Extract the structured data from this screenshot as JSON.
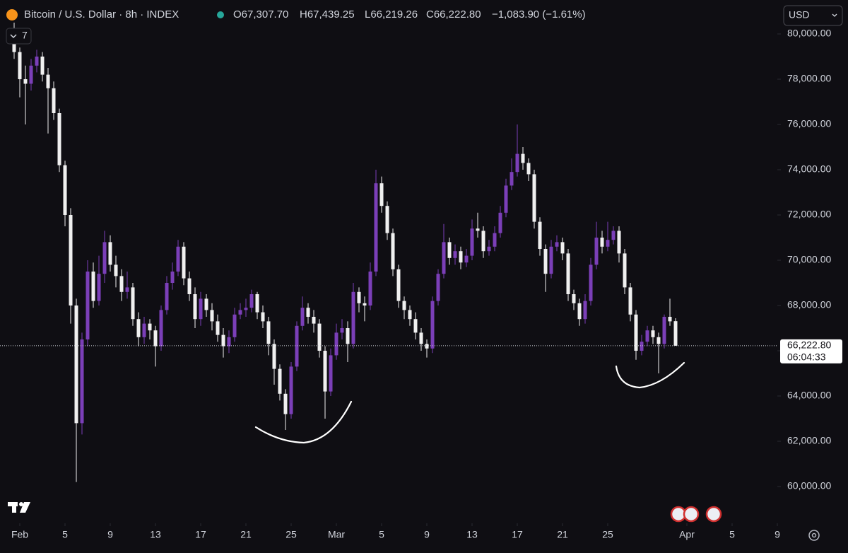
{
  "chart_data": {
    "type": "candlestick",
    "title": "Bitcoin / U.S. Dollar · 8h · INDEX",
    "ohlc_labels": [
      "O67,307.70",
      "H67,439.25",
      "L66,219.26",
      "C66,222.80"
    ],
    "change": "−1,083.90 (−1.61%)",
    "currency": "USD",
    "indicator_count": "7",
    "last_price_label": "66,222.80",
    "countdown": "06:04:33",
    "up_color": "#7b3fb8",
    "down_color": "#f0f0f0",
    "xlim": [
      -1.75,
      67
    ],
    "ylim": [
      58375,
      81500
    ],
    "xticks": [
      {
        "value": 0,
        "label": "Feb"
      },
      {
        "value": 4,
        "label": "5"
      },
      {
        "value": 8,
        "label": "9"
      },
      {
        "value": 12,
        "label": "13"
      },
      {
        "value": 16,
        "label": "17"
      },
      {
        "value": 20,
        "label": "21"
      },
      {
        "value": 24,
        "label": "25"
      },
      {
        "value": 28,
        "label": "Mar"
      },
      {
        "value": 32,
        "label": "5"
      },
      {
        "value": 36,
        "label": "9"
      },
      {
        "value": 40,
        "label": "13"
      },
      {
        "value": 44,
        "label": "17"
      },
      {
        "value": 48,
        "label": "21"
      },
      {
        "value": 52,
        "label": "25"
      },
      {
        "value": 59,
        "label": "Apr"
      },
      {
        "value": 63,
        "label": "5"
      },
      {
        "value": 67,
        "label": "9"
      }
    ],
    "yticks": [
      {
        "value": 60000,
        "label": "60,000.00"
      },
      {
        "value": 62000,
        "label": "62,000.00"
      },
      {
        "value": 64000,
        "label": "64,000.00"
      },
      {
        "value": 66000,
        "label": "66,000.00"
      },
      {
        "value": 68000,
        "label": "68,000.00"
      },
      {
        "value": 70000,
        "label": "70,000.00"
      },
      {
        "value": 72000,
        "label": "72,000.00"
      },
      {
        "value": 74000,
        "label": "74,000.00"
      },
      {
        "value": 76000,
        "label": "76,000.00"
      },
      {
        "value": 78000,
        "label": "78,000.00"
      },
      {
        "value": 80000,
        "label": "80,000.00"
      }
    ],
    "x": [
      -0.5,
      0,
      0.5,
      1,
      1.5,
      2,
      2.5,
      3,
      3.5,
      4,
      4.5,
      5,
      5.5,
      6,
      6.5,
      7,
      7.5,
      8,
      8.5,
      9,
      9.5,
      10,
      10.5,
      11,
      11.5,
      12,
      12.5,
      13,
      13.5,
      14,
      14.5,
      15,
      15.5,
      16,
      16.5,
      17,
      17.5,
      18,
      18.5,
      19,
      19.5,
      20,
      20.5,
      21,
      21.5,
      22,
      22.5,
      23,
      23.5,
      24,
      24.5,
      25,
      25.5,
      26,
      26.5,
      27,
      27.5,
      28,
      28.5,
      29,
      29.5,
      30,
      30.5,
      31,
      31.5,
      32,
      32.5,
      33,
      33.5,
      34,
      34.5,
      35,
      35.5,
      36,
      36.5,
      37,
      37.5,
      38,
      38.5,
      39,
      39.5,
      40,
      40.5,
      41,
      41.5,
      42,
      42.5,
      43,
      43.5,
      44,
      44.5,
      45,
      45.5,
      46,
      46.5,
      47,
      47.5,
      48,
      48.5,
      49,
      49.5,
      50,
      50.5,
      51,
      51.5,
      52,
      52.5,
      53,
      53.5,
      54,
      54.5,
      55,
      55.5,
      56,
      56.5,
      57,
      57.5,
      58
    ],
    "open": [
      79800,
      79200,
      78000,
      77800,
      78600,
      79000,
      78200,
      77600,
      76500,
      74200,
      72000,
      68000,
      62800,
      66500,
      69500,
      68200,
      69400,
      70800,
      69800,
      69300,
      68600,
      68800,
      67400,
      66600,
      67200,
      66900,
      66200,
      67800,
      69000,
      69500,
      70600,
      69200,
      68500,
      67400,
      68300,
      67800,
      67300,
      66700,
      66200,
      66600,
      67600,
      67800,
      67900,
      68500,
      67700,
      67300,
      66300,
      65200,
      64100,
      63200,
      65300,
      67100,
      67900,
      67500,
      67200,
      66000,
      64200,
      65800,
      66800,
      67000,
      66300,
      68600,
      68100,
      68000,
      69500,
      73400,
      72400,
      71200,
      69600,
      68200,
      67800,
      67400,
      66800,
      66300,
      66100,
      68200,
      69400,
      70800,
      70100,
      70400,
      69900,
      70200,
      71400,
      71300,
      70400,
      70600,
      71200,
      72100,
      73300,
      73900,
      74700,
      74300,
      73800,
      71700,
      70500,
      69400,
      70600,
      70800,
      70300,
      68500,
      68100,
      67400,
      68200,
      69800,
      71000,
      70600,
      70900,
      71300,
      70300,
      68800,
      67600,
      66000,
      66400,
      66900,
      66600,
      66300,
      67500,
      67307.7
    ],
    "high": [
      80500,
      79400,
      78600,
      78900,
      79300,
      79200,
      78500,
      77900,
      76700,
      74400,
      72300,
      68300,
      66800,
      70000,
      69900,
      70200,
      71300,
      71100,
      70200,
      69600,
      69500,
      69000,
      67700,
      67500,
      67400,
      67100,
      68000,
      69300,
      69900,
      70900,
      70800,
      69500,
      68800,
      68600,
      68500,
      68100,
      67600,
      67000,
      66900,
      67900,
      68100,
      68300,
      68700,
      68600,
      68000,
      67500,
      66500,
      65400,
      64300,
      65500,
      67300,
      68400,
      68100,
      67800,
      67400,
      66200,
      66100,
      67200,
      67400,
      67300,
      69000,
      68800,
      68400,
      69900,
      74000,
      73700,
      72600,
      71400,
      69800,
      68400,
      68000,
      67700,
      67000,
      66500,
      68400,
      69600,
      71600,
      71000,
      70700,
      70600,
      70500,
      71800,
      72100,
      71500,
      70900,
      71500,
      72400,
      73600,
      74500,
      76000,
      75000,
      74500,
      74000,
      71900,
      70700,
      70900,
      71100,
      71000,
      70500,
      68700,
      68300,
      68500,
      70100,
      71700,
      71300,
      71700,
      71500,
      71500,
      70500,
      69000,
      67800,
      66700,
      67100,
      67100,
      66800,
      67600,
      68300,
      67439.25
    ],
    "low": [
      78900,
      77200,
      76000,
      77500,
      78300,
      77900,
      75600,
      76200,
      73900,
      71500,
      67200,
      60200,
      62300,
      66200,
      67900,
      68000,
      69000,
      69500,
      68800,
      68200,
      68300,
      67100,
      66200,
      66300,
      66500,
      65300,
      66000,
      67600,
      68700,
      69300,
      68900,
      68200,
      67000,
      67100,
      67500,
      66900,
      66400,
      65700,
      65900,
      66400,
      67400,
      67500,
      67700,
      67400,
      67000,
      65800,
      64500,
      63800,
      62500,
      63000,
      65100,
      66900,
      67200,
      66800,
      65700,
      63000,
      64000,
      65600,
      66500,
      65500,
      66100,
      67700,
      67300,
      67800,
      69300,
      72100,
      70900,
      69300,
      67900,
      67400,
      67100,
      66500,
      66000,
      65700,
      65900,
      68000,
      69200,
      69800,
      69800,
      69600,
      69700,
      70000,
      71000,
      70100,
      70200,
      70400,
      71000,
      71900,
      73100,
      73700,
      74000,
      73500,
      71400,
      70200,
      68600,
      69200,
      70400,
      70000,
      68200,
      67800,
      67100,
      67200,
      68000,
      69600,
      70300,
      70400,
      70700,
      69900,
      68500,
      67300,
      65600,
      65800,
      66200,
      66300,
      65000,
      66100,
      67100,
      66219.26
    ],
    "close": [
      79200,
      78000,
      77800,
      78600,
      79000,
      78200,
      77600,
      76500,
      74200,
      72000,
      68000,
      62800,
      66500,
      69500,
      68200,
      69400,
      70800,
      69800,
      69300,
      68600,
      68800,
      67400,
      66600,
      67200,
      66900,
      66200,
      67800,
      69000,
      69500,
      70600,
      69200,
      68500,
      67400,
      68300,
      67800,
      67300,
      66700,
      66200,
      66600,
      67600,
      67800,
      67900,
      68500,
      67700,
      67300,
      66300,
      65200,
      64100,
      63200,
      65300,
      67100,
      67900,
      67500,
      67200,
      66000,
      64200,
      65800,
      66800,
      67000,
      66300,
      68600,
      68100,
      68000,
      69500,
      73400,
      72400,
      71200,
      69600,
      68200,
      67800,
      67400,
      66800,
      66300,
      66100,
      68200,
      69400,
      70800,
      70100,
      70400,
      69900,
      70200,
      71400,
      71300,
      70400,
      70600,
      71200,
      72100,
      73300,
      73900,
      74700,
      74300,
      73800,
      71700,
      70500,
      69400,
      70600,
      70800,
      70300,
      68500,
      68100,
      67400,
      68200,
      69800,
      71000,
      70600,
      70900,
      71300,
      70300,
      68800,
      67600,
      66000,
      66400,
      66900,
      66600,
      66300,
      67500,
      67300,
      66222.8
    ]
  }
}
